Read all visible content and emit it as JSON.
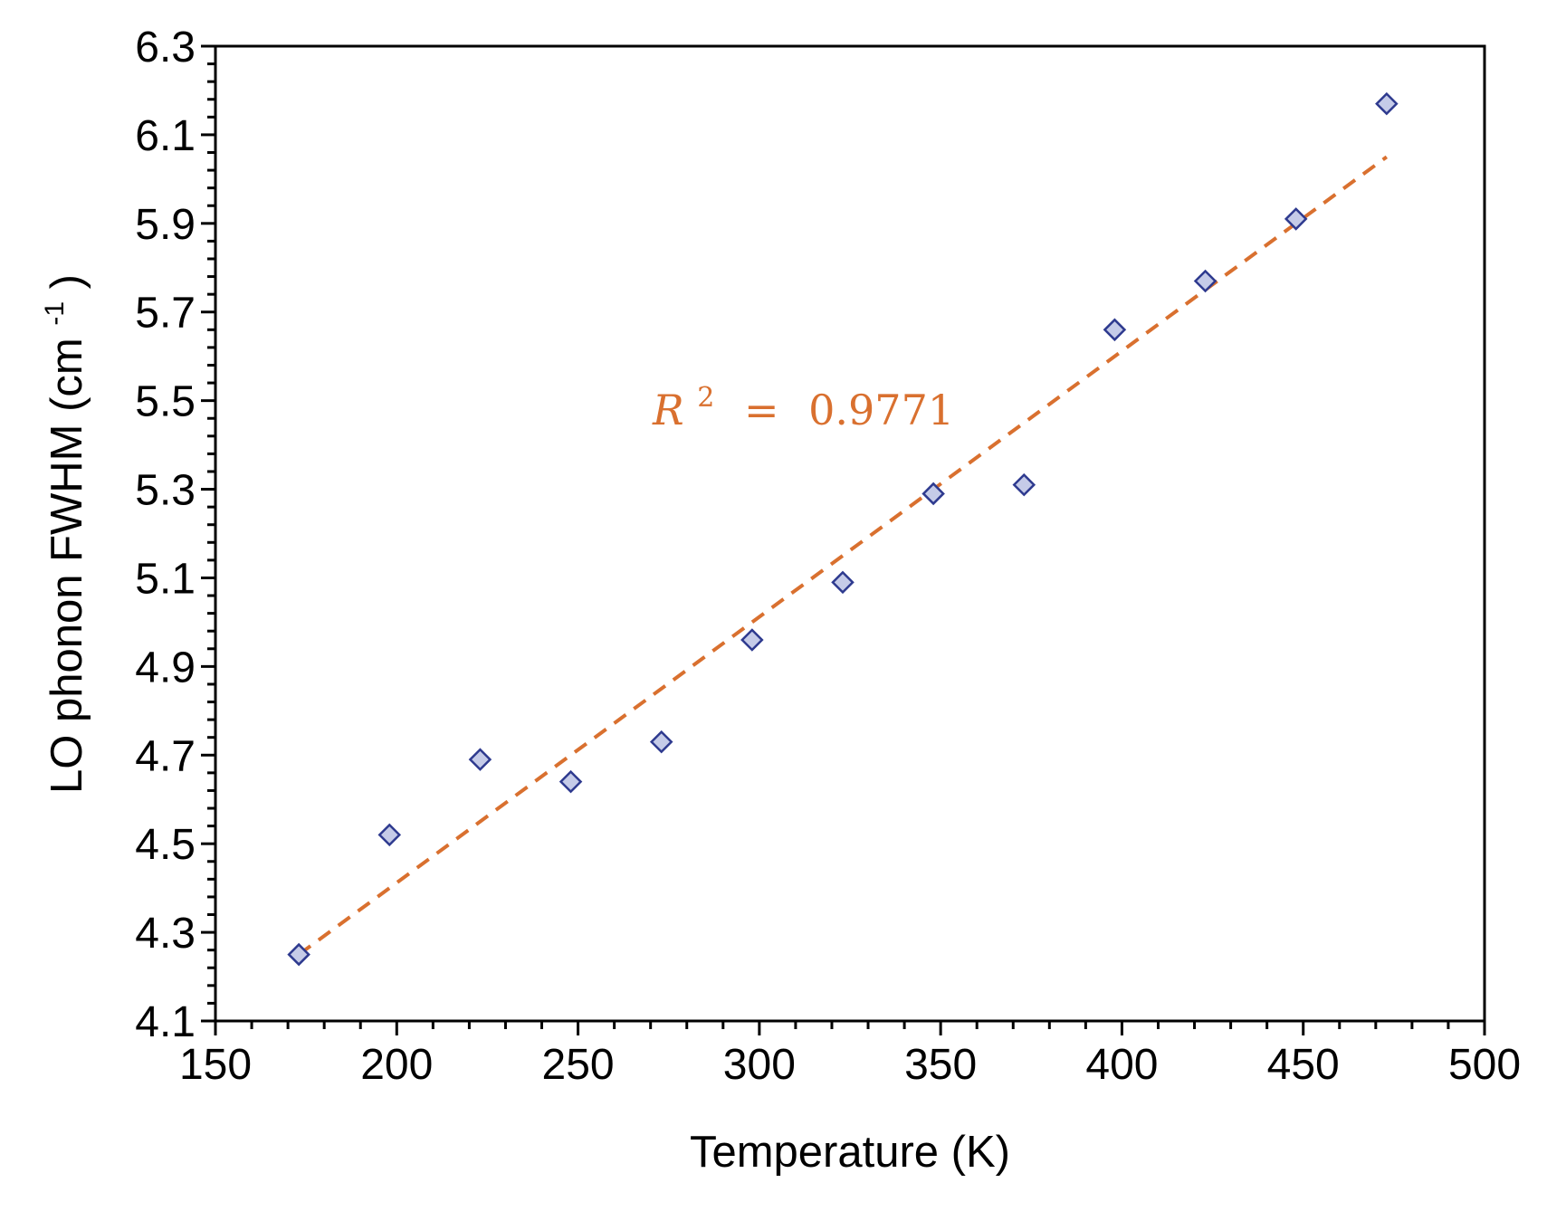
{
  "chart_data": {
    "type": "scatter",
    "xlabel": "Temperature (K)",
    "ylabel_main": "LO phonon FWHM (cm",
    "ylabel_sup": "-1",
    "ylabel_close": ")",
    "xlim": [
      150,
      500
    ],
    "ylim": [
      4.1,
      6.3
    ],
    "x_ticks": [
      150,
      200,
      250,
      300,
      350,
      400,
      450,
      500
    ],
    "x_tick_labels": [
      "150",
      "200",
      "250",
      "300",
      "350",
      "400",
      "450",
      "500"
    ],
    "y_ticks": [
      4.1,
      4.3,
      4.5,
      4.7,
      4.9,
      5.1,
      5.3,
      5.5,
      5.7,
      5.9,
      6.1,
      6.3
    ],
    "y_tick_labels": [
      "4.1",
      "4.3",
      "4.5",
      "4.7",
      "4.9",
      "5.1",
      "5.3",
      "5.5",
      "5.7",
      "5.9",
      "6.1",
      "6.3"
    ],
    "x_minor_step": 10,
    "y_minor_step": 0.04,
    "grid": false,
    "legend": "none",
    "series": [
      {
        "marker": "diamond",
        "marker_fill": "#c5cbe8",
        "marker_edge": "#2e3a8f",
        "x": [
          173,
          198,
          223,
          248,
          273,
          298,
          323,
          348,
          373,
          398,
          423,
          448,
          473
        ],
        "y": [
          4.25,
          4.52,
          4.69,
          4.64,
          4.73,
          4.96,
          5.09,
          5.29,
          5.31,
          5.66,
          5.77,
          5.91,
          6.17
        ]
      }
    ],
    "trendline": {
      "color": "#d9702f",
      "style": "dashed",
      "x_start": 173,
      "x_end": 473,
      "y_start": 4.25,
      "y_end": 6.05
    },
    "annotation": {
      "r_symbol": "R",
      "exponent": "2",
      "equals": "=",
      "value": "0.9771",
      "color": "#d9702f"
    }
  }
}
